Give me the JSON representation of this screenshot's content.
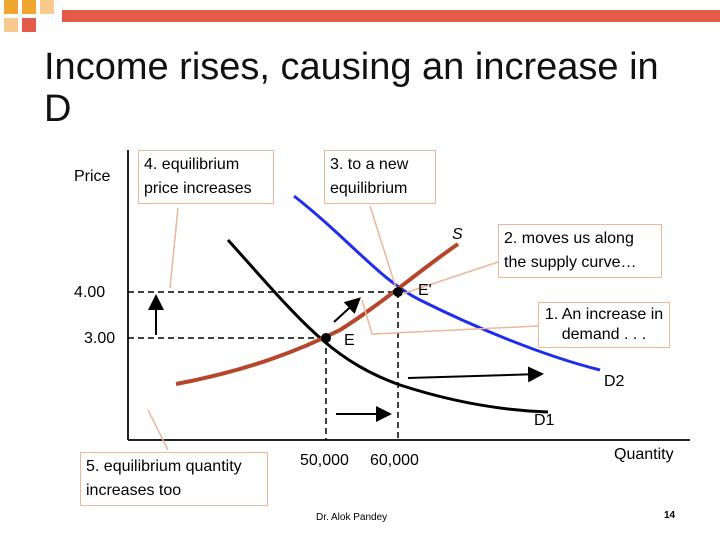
{
  "title": "Income rises, causing an increase in D",
  "annotations": {
    "step4": "4. equilibrium price increases",
    "step3": "3. to a new equilibrium",
    "step2": "2. moves us along the supply curve…",
    "step1": "1. An increase in demand . . .",
    "step5": "5. equilibrium quantity increases too"
  },
  "axes": {
    "y_label": "Price",
    "x_label": "Quantity",
    "y_ticks": [
      "4.00",
      "3.00"
    ],
    "x_ticks": [
      "50,000",
      "60,000"
    ]
  },
  "curves": {
    "supply": "S",
    "demand1": "D1",
    "demand2": "D2"
  },
  "points": {
    "e1": "E",
    "e2": "E'"
  },
  "colors": {
    "supply": "#b5462a",
    "demand2": "#1f2eea",
    "demand1": "#000000",
    "logo_bar": "#e35a4b",
    "logo_square": "#f0a531"
  },
  "footer": {
    "author": "Dr. Alok Pandey",
    "page": "14"
  }
}
